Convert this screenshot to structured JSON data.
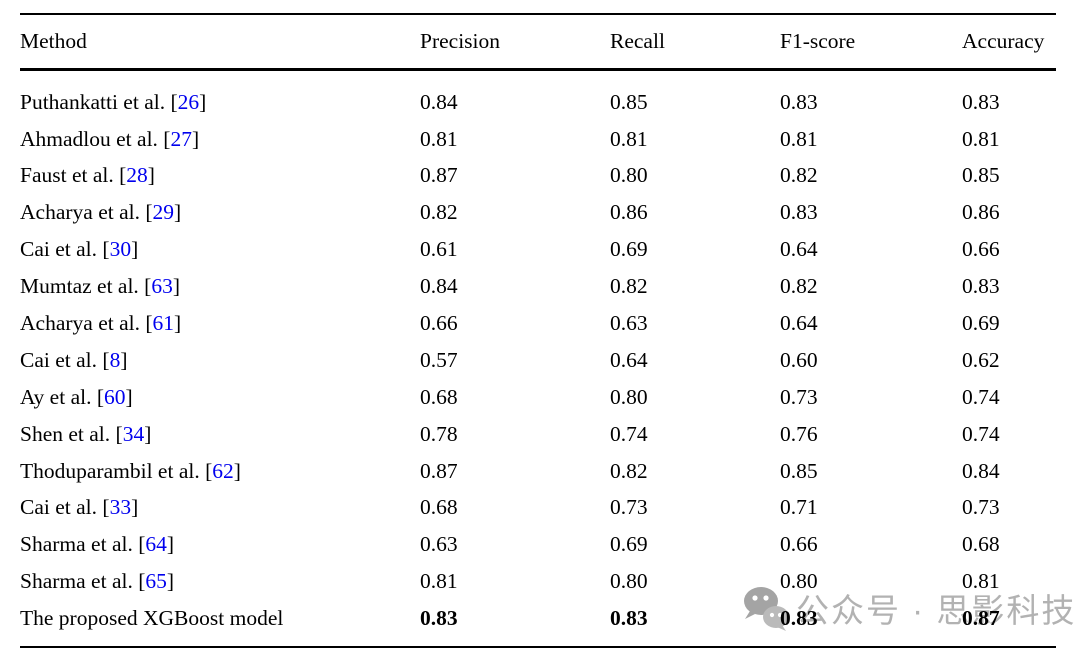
{
  "table": {
    "columns": [
      "Method",
      "Precision",
      "Recall",
      "F1-score",
      "Accuracy"
    ],
    "rows": [
      {
        "method": "Puthankatti et al.",
        "ref": "26",
        "precision": "0.84",
        "recall": "0.85",
        "f1": "0.83",
        "accuracy": "0.83",
        "bold": false
      },
      {
        "method": "Ahmadlou et al.",
        "ref": "27",
        "precision": "0.81",
        "recall": "0.81",
        "f1": "0.81",
        "accuracy": "0.81",
        "bold": false
      },
      {
        "method": "Faust et al.",
        "ref": "28",
        "precision": "0.87",
        "recall": "0.80",
        "f1": "0.82",
        "accuracy": "0.85",
        "bold": false
      },
      {
        "method": "Acharya et al.",
        "ref": "29",
        "precision": "0.82",
        "recall": "0.86",
        "f1": "0.83",
        "accuracy": "0.86",
        "bold": false
      },
      {
        "method": "Cai et al.",
        "ref": "30",
        "precision": "0.61",
        "recall": "0.69",
        "f1": "0.64",
        "accuracy": "0.66",
        "bold": false
      },
      {
        "method": "Mumtaz et al.",
        "ref": "63",
        "precision": "0.84",
        "recall": "0.82",
        "f1": "0.82",
        "accuracy": "0.83",
        "bold": false
      },
      {
        "method": "Acharya et al.",
        "ref": "61",
        "precision": "0.66",
        "recall": "0.63",
        "f1": "0.64",
        "accuracy": "0.69",
        "bold": false
      },
      {
        "method": "Cai et al.",
        "ref": "8",
        "precision": "0.57",
        "recall": "0.64",
        "f1": "0.60",
        "accuracy": "0.62",
        "bold": false
      },
      {
        "method": "Ay et al.",
        "ref": "60",
        "precision": "0.68",
        "recall": "0.80",
        "f1": "0.73",
        "accuracy": "0.74",
        "bold": false
      },
      {
        "method": "Shen et al.",
        "ref": "34",
        "precision": "0.78",
        "recall": "0.74",
        "f1": "0.76",
        "accuracy": "0.74",
        "bold": false
      },
      {
        "method": "Thoduparambil et al.",
        "ref": "62",
        "precision": "0.87",
        "recall": "0.82",
        "f1": "0.85",
        "accuracy": "0.84",
        "bold": false
      },
      {
        "method": "Cai et al.",
        "ref": "33",
        "precision": "0.68",
        "recall": "0.73",
        "f1": "0.71",
        "accuracy": "0.73",
        "bold": false
      },
      {
        "method": "Sharma et al.",
        "ref": "64",
        "precision": "0.63",
        "recall": "0.69",
        "f1": "0.66",
        "accuracy": "0.68",
        "bold": false
      },
      {
        "method": "Sharma et al.",
        "ref": "65",
        "precision": "0.81",
        "recall": "0.80",
        "f1": "0.80",
        "accuracy": "0.81",
        "bold": false
      },
      {
        "method": "The proposed XGBoost model",
        "ref": null,
        "precision": "0.83",
        "recall": "0.83",
        "f1": "0.83",
        "accuracy": "0.87",
        "bold": true
      }
    ]
  },
  "watermark": {
    "icon": "wechat-icon",
    "text": "公众号 · 思影科技",
    "color": "#aaaaaa"
  },
  "colors": {
    "citation_link": "#0000ee",
    "text": "#000000",
    "rule": "#000000",
    "background": "#ffffff"
  }
}
